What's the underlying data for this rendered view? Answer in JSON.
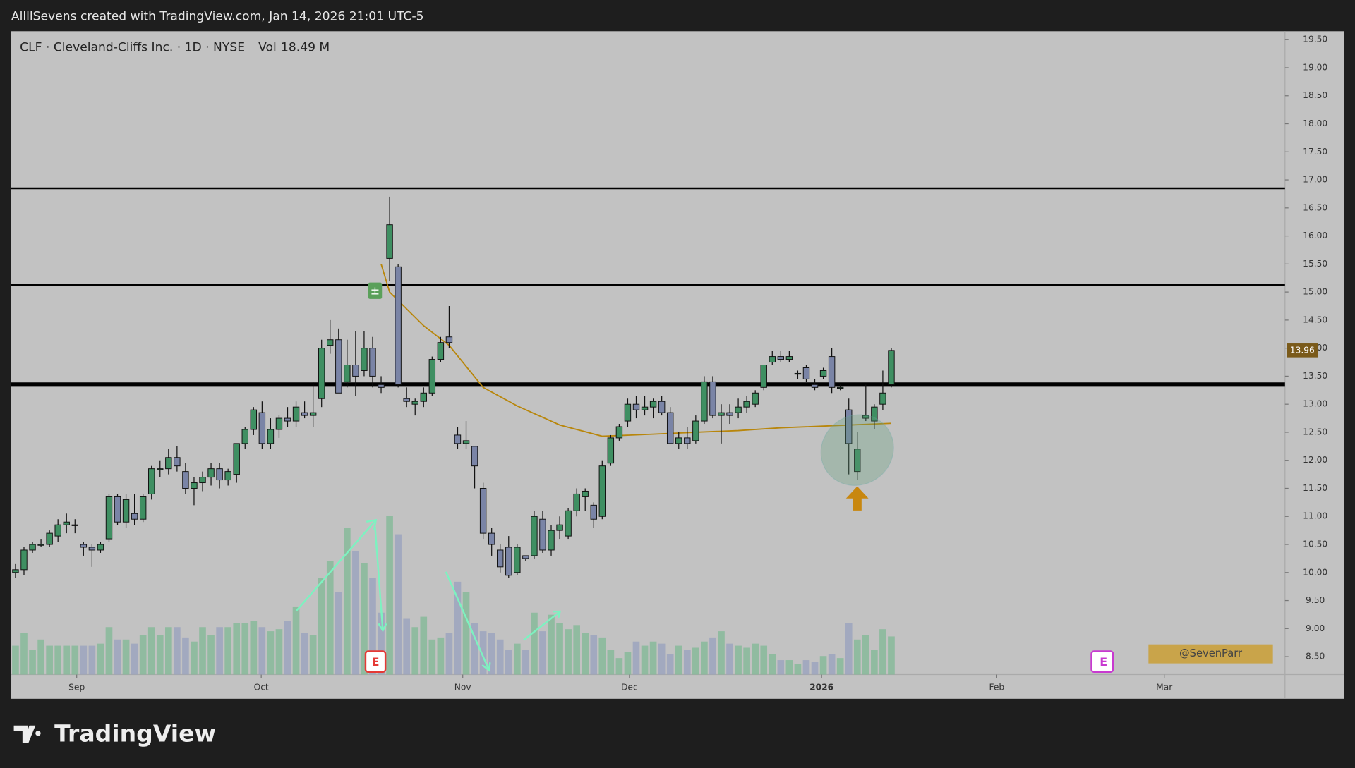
{
  "header": "AllllSevens created with TradingView.com, Jan 14, 2026 21:01 UTC-5",
  "chart_data": {
    "type": "candlestick",
    "title": "CLF · Cleveland-Cliffs Inc. · 1D · NYSE",
    "legend_volume": "Vol",
    "volume_value_label": "18.49 M",
    "up_color": "#3f8f62",
    "down_color": "#7a84a6",
    "candles": [
      [
        10.0,
        10.15,
        9.9,
        10.05,
        14
      ],
      [
        10.05,
        10.45,
        9.95,
        10.4,
        20
      ],
      [
        10.4,
        10.55,
        10.35,
        10.5,
        12
      ],
      [
        10.5,
        10.6,
        10.45,
        10.5,
        17
      ],
      [
        10.5,
        10.75,
        10.45,
        10.7,
        14
      ],
      [
        10.65,
        10.95,
        10.55,
        10.85,
        14
      ],
      [
        10.85,
        11.05,
        10.7,
        10.9,
        14
      ],
      [
        10.85,
        10.95,
        10.7,
        10.85,
        14
      ],
      [
        10.5,
        10.55,
        10.3,
        10.45,
        14
      ],
      [
        10.45,
        10.5,
        10.1,
        10.4,
        14
      ],
      [
        10.4,
        10.55,
        10.35,
        10.5,
        15
      ],
      [
        10.6,
        11.4,
        10.55,
        11.35,
        23
      ],
      [
        11.35,
        11.4,
        10.85,
        10.9,
        17
      ],
      [
        10.9,
        11.4,
        10.8,
        11.3,
        17
      ],
      [
        11.05,
        11.4,
        10.85,
        10.95,
        15
      ],
      [
        10.95,
        11.4,
        10.9,
        11.35,
        19
      ],
      [
        11.4,
        11.9,
        11.3,
        11.85,
        23
      ],
      [
        11.85,
        12.0,
        11.7,
        11.85,
        19
      ],
      [
        11.85,
        12.2,
        11.75,
        12.05,
        23
      ],
      [
        12.05,
        12.25,
        11.8,
        11.9,
        23
      ],
      [
        11.8,
        11.95,
        11.4,
        11.5,
        18
      ],
      [
        11.5,
        11.7,
        11.2,
        11.6,
        16
      ],
      [
        11.6,
        11.8,
        11.45,
        11.7,
        23
      ],
      [
        11.7,
        11.95,
        11.55,
        11.85,
        19
      ],
      [
        11.85,
        11.95,
        11.5,
        11.65,
        23
      ],
      [
        11.65,
        11.85,
        11.55,
        11.8,
        23
      ],
      [
        11.75,
        12.3,
        11.6,
        12.3,
        25
      ],
      [
        12.3,
        12.6,
        12.2,
        12.55,
        25
      ],
      [
        12.55,
        12.95,
        12.45,
        12.9,
        26
      ],
      [
        12.85,
        13.05,
        12.2,
        12.3,
        23
      ],
      [
        12.3,
        12.75,
        12.2,
        12.55,
        21
      ],
      [
        12.55,
        12.8,
        12.4,
        12.75,
        22
      ],
      [
        12.75,
        12.95,
        12.6,
        12.7,
        26
      ],
      [
        12.7,
        13.05,
        12.6,
        12.95,
        33
      ],
      [
        12.85,
        13.05,
        12.75,
        12.8,
        20
      ],
      [
        12.8,
        13.4,
        12.6,
        12.85,
        19
      ],
      [
        13.1,
        14.15,
        12.95,
        14.0,
        47
      ],
      [
        14.05,
        14.5,
        13.9,
        14.15,
        55
      ],
      [
        14.15,
        14.35,
        13.2,
        13.2,
        40
      ],
      [
        13.4,
        14.15,
        13.3,
        13.7,
        71
      ],
      [
        13.7,
        14.3,
        13.15,
        13.5,
        60
      ],
      [
        13.6,
        14.3,
        13.5,
        14.0,
        54
      ],
      [
        14.0,
        14.2,
        13.3,
        13.5,
        47
      ],
      [
        13.35,
        13.5,
        13.2,
        13.3,
        30
      ],
      [
        15.6,
        16.7,
        15.2,
        16.2,
        77
      ],
      [
        15.45,
        15.5,
        13.3,
        13.35,
        68
      ],
      [
        13.1,
        13.3,
        12.95,
        13.05,
        27
      ],
      [
        13.0,
        13.1,
        12.8,
        13.05,
        23
      ],
      [
        13.05,
        13.3,
        12.95,
        13.2,
        28
      ],
      [
        13.2,
        13.85,
        13.15,
        13.8,
        17
      ],
      [
        13.8,
        14.2,
        13.75,
        14.1,
        18
      ],
      [
        14.2,
        14.75,
        14.0,
        14.1,
        20
      ],
      [
        12.45,
        12.6,
        12.2,
        12.3,
        45
      ],
      [
        12.3,
        12.7,
        12.2,
        12.35,
        40
      ],
      [
        12.25,
        12.25,
        11.5,
        11.9,
        25
      ],
      [
        11.5,
        11.6,
        10.6,
        10.7,
        21
      ],
      [
        10.7,
        10.8,
        10.3,
        10.5,
        20
      ],
      [
        10.4,
        10.5,
        10.0,
        10.1,
        17
      ],
      [
        10.45,
        10.65,
        9.9,
        9.95,
        12
      ],
      [
        10.0,
        10.5,
        9.95,
        10.45,
        15
      ],
      [
        10.3,
        10.3,
        10.2,
        10.25,
        12
      ],
      [
        10.3,
        11.1,
        10.25,
        11.0,
        30
      ],
      [
        10.95,
        11.1,
        10.35,
        10.4,
        21
      ],
      [
        10.4,
        10.85,
        10.3,
        10.75,
        29
      ],
      [
        10.75,
        11.0,
        10.6,
        10.85,
        25
      ],
      [
        10.65,
        11.15,
        10.6,
        11.1,
        22
      ],
      [
        11.1,
        11.5,
        11.0,
        11.4,
        24
      ],
      [
        11.35,
        11.5,
        11.1,
        11.45,
        20
      ],
      [
        11.2,
        11.25,
        10.8,
        10.95,
        19
      ],
      [
        11.0,
        12.0,
        10.95,
        11.9,
        18
      ],
      [
        11.95,
        12.45,
        11.9,
        12.4,
        12
      ],
      [
        12.4,
        12.65,
        12.35,
        12.6,
        8
      ],
      [
        12.7,
        13.1,
        12.6,
        13.0,
        11
      ],
      [
        13.0,
        13.15,
        12.75,
        12.9,
        16
      ],
      [
        12.9,
        13.15,
        12.8,
        12.95,
        14
      ],
      [
        12.95,
        13.1,
        12.75,
        13.05,
        16
      ],
      [
        13.05,
        13.15,
        12.8,
        12.85,
        15
      ],
      [
        12.85,
        12.95,
        12.3,
        12.3,
        10
      ],
      [
        12.3,
        12.5,
        12.2,
        12.4,
        14
      ],
      [
        12.4,
        12.6,
        12.2,
        12.3,
        12
      ],
      [
        12.35,
        12.8,
        12.3,
        12.7,
        13
      ],
      [
        12.7,
        13.5,
        12.65,
        13.4,
        16
      ],
      [
        13.4,
        13.5,
        12.75,
        12.8,
        18
      ],
      [
        12.8,
        13.0,
        12.3,
        12.85,
        21
      ],
      [
        12.85,
        13.0,
        12.65,
        12.8,
        15
      ],
      [
        12.85,
        13.1,
        12.75,
        12.95,
        14
      ],
      [
        12.95,
        13.15,
        12.85,
        13.05,
        13
      ],
      [
        13.0,
        13.25,
        12.95,
        13.2,
        15
      ],
      [
        13.3,
        13.7,
        13.25,
        13.7,
        14
      ],
      [
        13.75,
        13.95,
        13.7,
        13.85,
        10
      ],
      [
        13.85,
        13.95,
        13.75,
        13.8,
        7
      ],
      [
        13.8,
        13.95,
        13.75,
        13.85,
        7
      ],
      [
        13.55,
        13.6,
        13.45,
        13.55,
        5
      ],
      [
        13.65,
        13.7,
        13.4,
        13.45,
        7
      ],
      [
        13.35,
        13.45,
        13.25,
        13.3,
        6
      ],
      [
        13.5,
        13.65,
        13.45,
        13.6,
        9
      ],
      [
        13.85,
        14.0,
        13.2,
        13.3,
        10
      ],
      [
        13.3,
        13.35,
        13.25,
        13.3,
        8
      ],
      [
        12.9,
        13.1,
        11.75,
        12.3,
        25
      ],
      [
        11.8,
        12.5,
        11.65,
        12.2,
        17
      ],
      [
        12.75,
        13.35,
        12.7,
        12.8,
        19
      ],
      [
        12.7,
        13.0,
        12.55,
        12.95,
        12
      ],
      [
        13.0,
        13.6,
        12.9,
        13.2,
        22
      ],
      [
        13.35,
        14.0,
        13.3,
        13.96,
        18.49
      ]
    ],
    "moving_average": {
      "color": "#b8860b",
      "x": [
        43,
        44,
        48,
        51,
        55,
        59,
        64,
        69,
        74,
        80,
        85,
        90,
        95,
        103
      ],
      "values": [
        15.5,
        15.0,
        14.4,
        14.05,
        13.3,
        12.97,
        12.63,
        12.43,
        12.46,
        12.5,
        12.53,
        12.58,
        12.61,
        12.66
      ]
    },
    "hlines": [
      16.85,
      15.13,
      13.35
    ],
    "xlim": [
      -0.5,
      149.3
    ],
    "xticks": [
      {
        "value": 7.2,
        "label": "Sep"
      },
      {
        "value": 28.9,
        "label": "Oct"
      },
      {
        "value": 52.6,
        "label": "Nov"
      },
      {
        "value": 72.2,
        "label": "Dec"
      },
      {
        "value": 94.8,
        "label": "2026"
      },
      {
        "value": 115.4,
        "label": "Feb"
      },
      {
        "value": 135.1,
        "label": "Mar"
      }
    ],
    "ylim": [
      8.18,
      19.65
    ],
    "yticks": [
      {
        "value": 19.5,
        "label": "19.50"
      },
      {
        "value": 19,
        "label": "19.00"
      },
      {
        "value": 18.5,
        "label": "18.50"
      },
      {
        "value": 18,
        "label": "18.00"
      },
      {
        "value": 17.5,
        "label": "17.50"
      },
      {
        "value": 17,
        "label": "17.00"
      },
      {
        "value": 16.5,
        "label": "16.50"
      },
      {
        "value": 16,
        "label": "16.00"
      },
      {
        "value": 15.5,
        "label": "15.50"
      },
      {
        "value": 15,
        "label": "15.00"
      },
      {
        "value": 14.5,
        "label": "14.50"
      },
      {
        "value": 14,
        "label": "14.00"
      },
      {
        "value": 13.5,
        "label": "13.50"
      },
      {
        "value": 13,
        "label": "13.00"
      },
      {
        "value": 12.5,
        "label": "12.50"
      },
      {
        "value": 12,
        "label": "12.00"
      },
      {
        "value": 11.5,
        "label": "11.50"
      },
      {
        "value": 11,
        "label": "11.00"
      },
      {
        "value": 10.5,
        "label": "10.50"
      },
      {
        "value": 10,
        "label": "10.00"
      },
      {
        "value": 9.5,
        "label": "9.50"
      },
      {
        "value": 9,
        "label": "9.00"
      },
      {
        "value": 8.5,
        "label": "8.50"
      }
    ],
    "events": [
      {
        "label": "E"
      },
      {
        "label": "E"
      }
    ],
    "watermark": "@SevenParr"
  },
  "footer": "TradingView"
}
